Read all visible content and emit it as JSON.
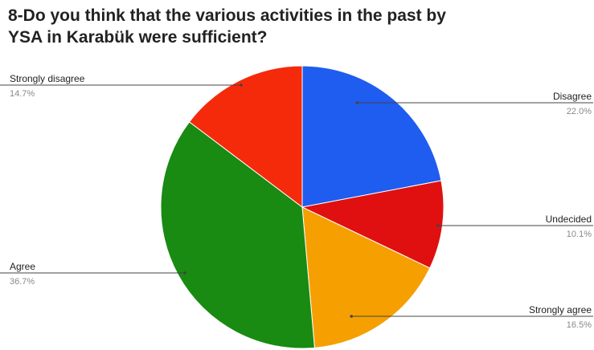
{
  "title_line1": "8-Do you think that  the various activities in the past by",
  "title_line2": "YSA in Karabük were sufficient?",
  "chart_data": {
    "type": "pie",
    "title": "8-Do you think that  the various activities in the past by YSA in Karabük were sufficient?",
    "slices": [
      {
        "label": "Disagree",
        "value": 22.0,
        "display": "22.0%",
        "color": "#1f5cf0"
      },
      {
        "label": "Undecided",
        "value": 10.1,
        "display": "10.1%",
        "color": "#e01010"
      },
      {
        "label": "Strongly agree",
        "value": 16.5,
        "display": "16.5%",
        "color": "#f5a000"
      },
      {
        "label": "Agree",
        "value": 36.7,
        "display": "36.7%",
        "color": "#198a12"
      },
      {
        "label": "Strongly disagree",
        "value": 14.7,
        "display": "14.7%",
        "color": "#f52a0a"
      }
    ],
    "legend": "callout-labels"
  }
}
